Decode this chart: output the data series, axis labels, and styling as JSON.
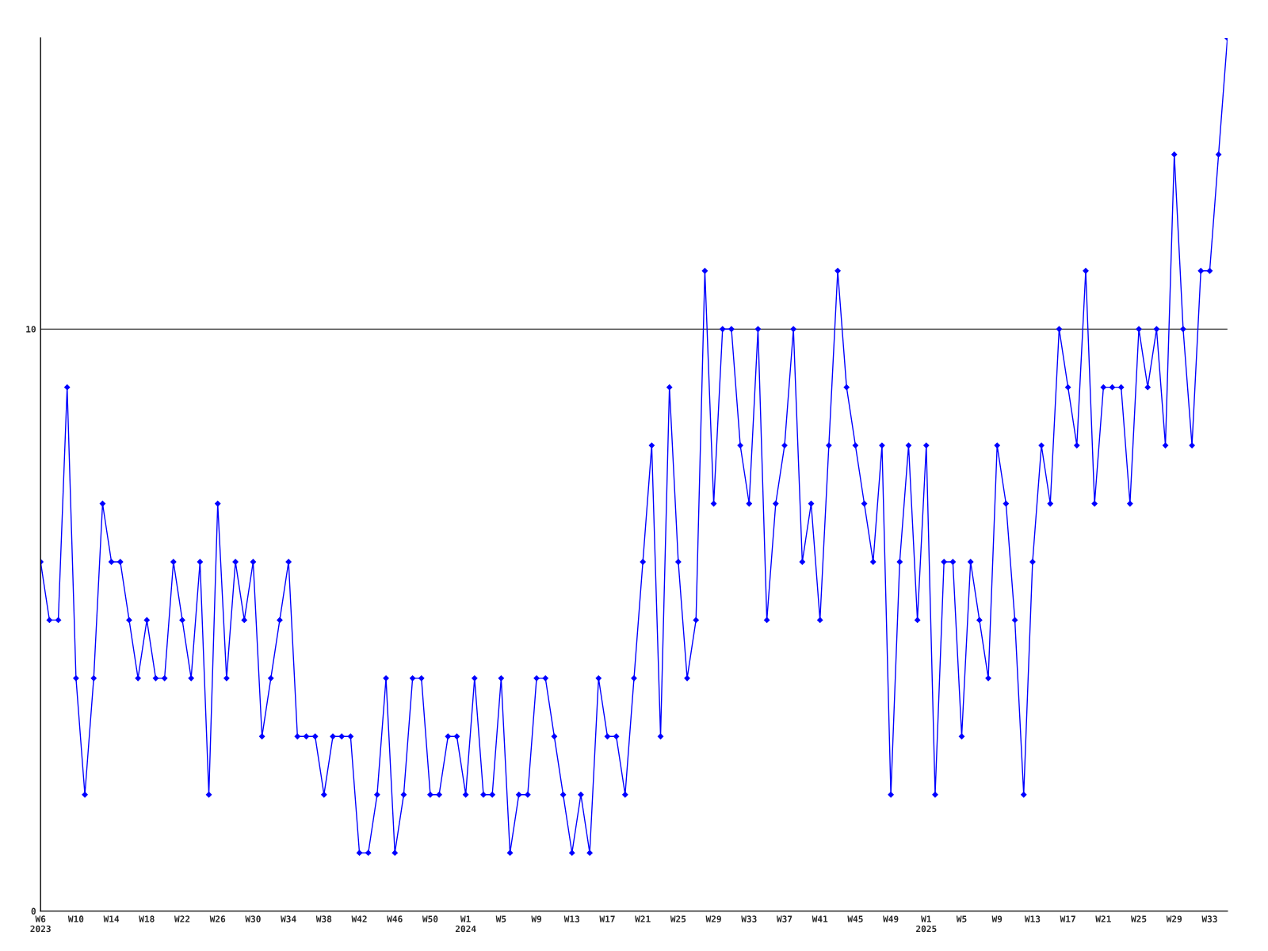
{
  "chart_data": {
    "type": "line",
    "categories": [
      "W6\n2023",
      null,
      null,
      null,
      "W10",
      null,
      null,
      null,
      "W14",
      null,
      null,
      null,
      "W18",
      null,
      null,
      null,
      "W22",
      null,
      null,
      null,
      "W26",
      null,
      null,
      null,
      "W30",
      null,
      null,
      null,
      "W34",
      null,
      null,
      null,
      "W38",
      null,
      null,
      null,
      "W42",
      null,
      null,
      null,
      "W46",
      null,
      null,
      null,
      "W50",
      null,
      null,
      null,
      "W1\n2024",
      null,
      null,
      null,
      "W5",
      null,
      null,
      null,
      "W9",
      null,
      null,
      null,
      "W13",
      null,
      null,
      null,
      "W17",
      null,
      null,
      null,
      "W21",
      null,
      null,
      null,
      "W25",
      null,
      null,
      null,
      "W29",
      null,
      null,
      null,
      "W33",
      null,
      null,
      null,
      "W37",
      null,
      null,
      null,
      "W41",
      null,
      null,
      null,
      "W45",
      null,
      null,
      null,
      "W49",
      null,
      null,
      null,
      "W1\n2025",
      null,
      null,
      null,
      "W5",
      null,
      null,
      null,
      "W9",
      null,
      null,
      null,
      "W13",
      null,
      null,
      null,
      "W17",
      null,
      null,
      null,
      "W21",
      null,
      null,
      null,
      "W25",
      null,
      null,
      null,
      "W29",
      null,
      null,
      null,
      "W33",
      null,
      null
    ],
    "series": [
      {
        "color": "#0000ff",
        "values": [
          6,
          5,
          5,
          9,
          4,
          2,
          4,
          7,
          6,
          6,
          5,
          4,
          5,
          4,
          4,
          6,
          5,
          4,
          6,
          2,
          7,
          4,
          6,
          5,
          6,
          3,
          4,
          5,
          6,
          3,
          3,
          3,
          2,
          3,
          3,
          3,
          1,
          1,
          2,
          4,
          1,
          2,
          4,
          4,
          2,
          2,
          3,
          3,
          2,
          4,
          2,
          2,
          4,
          1,
          2,
          2,
          4,
          4,
          3,
          2,
          1,
          2,
          1,
          4,
          3,
          3,
          2,
          4,
          6,
          8,
          3,
          9,
          6,
          4,
          5,
          11,
          7,
          10,
          10,
          8,
          7,
          10,
          5,
          7,
          8,
          10,
          6,
          7,
          5,
          8,
          11,
          9,
          8,
          7,
          6,
          8,
          2,
          6,
          8,
          5,
          8,
          2,
          6,
          6,
          3,
          6,
          5,
          4,
          8,
          7,
          5,
          2,
          6,
          8,
          7,
          10,
          9,
          8,
          11,
          7,
          9,
          9,
          9,
          7,
          10,
          9,
          10,
          8,
          13,
          10,
          8,
          11,
          11,
          13,
          15
        ]
      }
    ],
    "ylim": [
      0,
      15
    ],
    "yticks": [
      0,
      10
    ],
    "grid": "y",
    "marker": "diamond",
    "line_style": "solid",
    "legend": false
  }
}
